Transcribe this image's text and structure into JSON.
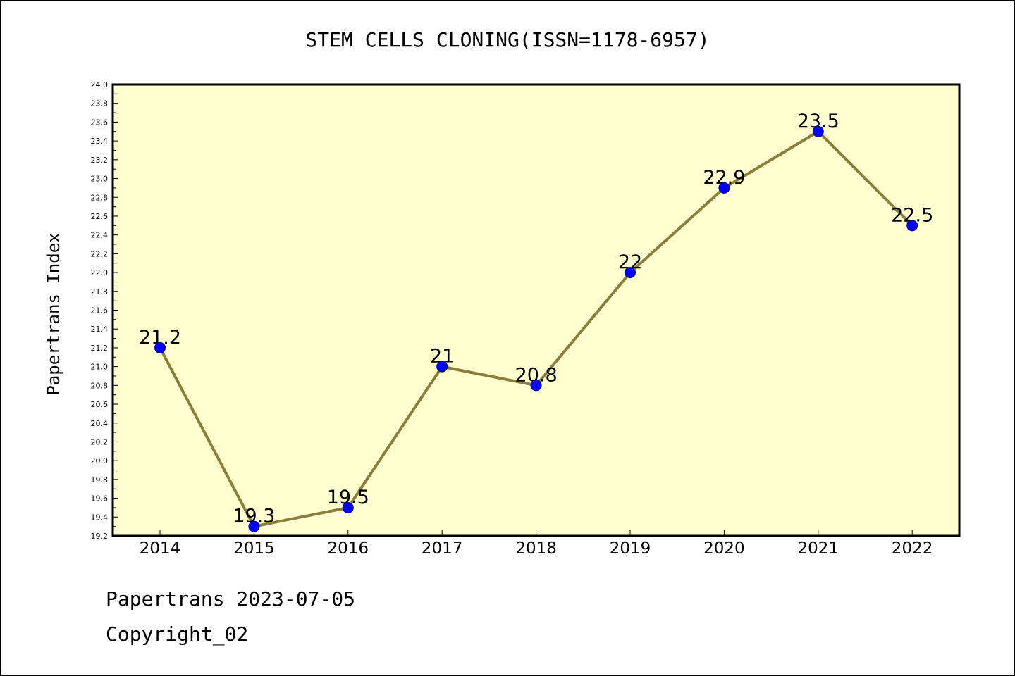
{
  "chart_data": {
    "type": "line",
    "title": "STEM CELLS CLONING(ISSN=1178-6957)",
    "ylabel": "Papertrans Index",
    "xlabel": "",
    "categories": [
      "2014",
      "2015",
      "2016",
      "2017",
      "2018",
      "2019",
      "2020",
      "2021",
      "2022"
    ],
    "series": [
      {
        "values": [
          21.2,
          19.3,
          19.5,
          21.0,
          20.8,
          22.0,
          22.9,
          23.5,
          22.5
        ],
        "labels": [
          "21.2",
          "19.3",
          "19.5",
          "21",
          "20.8",
          "22",
          "22.9",
          "23.5",
          "22.5"
        ]
      }
    ],
    "ylim": [
      19.2,
      24.0
    ],
    "yticks": [
      "19.2",
      "19.4",
      "19.6",
      "19.8",
      "20.0",
      "20.2",
      "20.4",
      "20.6",
      "20.8",
      "21.0",
      "21.2",
      "21.4",
      "21.6",
      "21.8",
      "22.0",
      "22.2",
      "22.4",
      "22.6",
      "22.8",
      "23.0",
      "23.2",
      "23.4",
      "23.6",
      "23.8",
      "24.0"
    ],
    "grid": false,
    "colors": {
      "plot_background": "#ffffd0",
      "line": "#8b7d3a",
      "marker": "#0000ff"
    }
  },
  "footer": {
    "line1": "Papertrans 2023-07-05",
    "line2": "Copyright_02"
  }
}
